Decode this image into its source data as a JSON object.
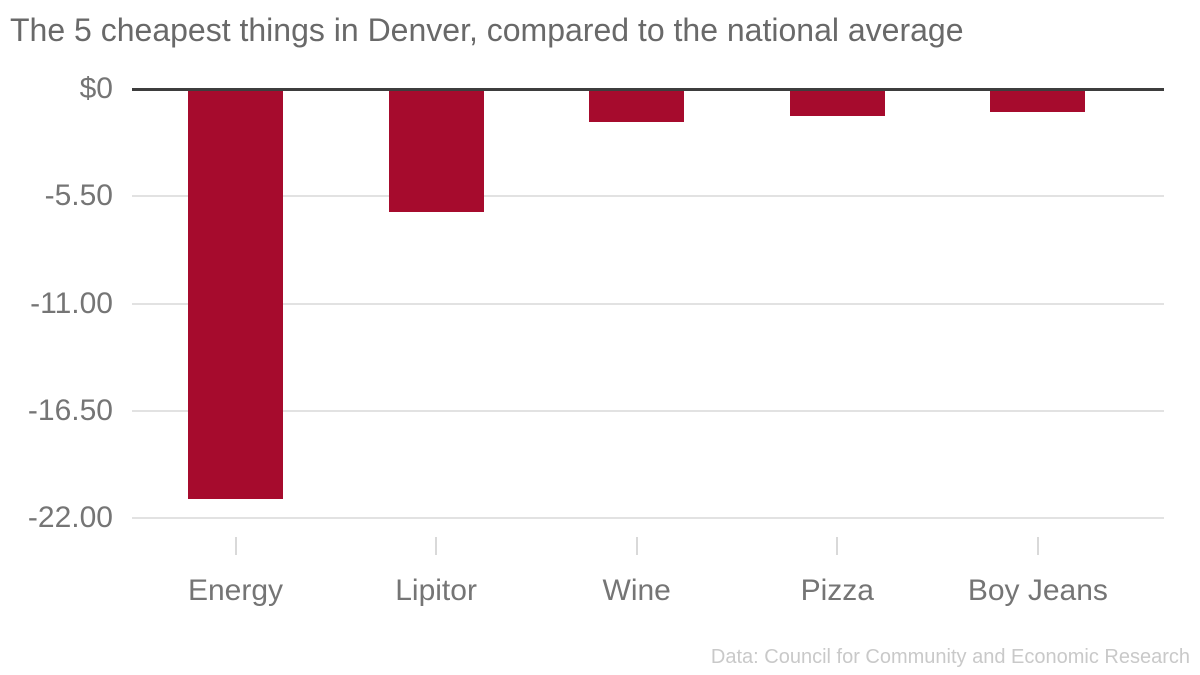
{
  "chart_data": {
    "type": "bar",
    "title": "The 5 cheapest things in Denver, compared to the national average",
    "categories": [
      "Energy",
      "Lipitor",
      "Wine",
      "Pizza",
      "Boy Jeans"
    ],
    "values": [
      -21.0,
      -6.3,
      -1.7,
      -1.4,
      -1.2
    ],
    "unit": "$",
    "y_ticks": [
      {
        "label": "$0",
        "value": 0
      },
      {
        "label": "-5.50",
        "value": -5.5
      },
      {
        "label": "-11.00",
        "value": -11
      },
      {
        "label": "-16.50",
        "value": -16.5
      },
      {
        "label": "-22.00",
        "value": -22
      }
    ],
    "ylim": [
      -22,
      0
    ],
    "xlabel": "",
    "ylabel": "",
    "grid": "horizontal",
    "legend": "none",
    "source": "Data: Council for Community and Economic Research"
  },
  "colors": {
    "background": "#ffffff",
    "bar": "#a60b2d",
    "zero_line": "#3d3d3d",
    "gridline": "#e2e2e2",
    "axis_tick": "#d9d9d9",
    "title_text": "#696969",
    "axis_label_text": "#757575",
    "source_text": "#c9c9c9"
  }
}
